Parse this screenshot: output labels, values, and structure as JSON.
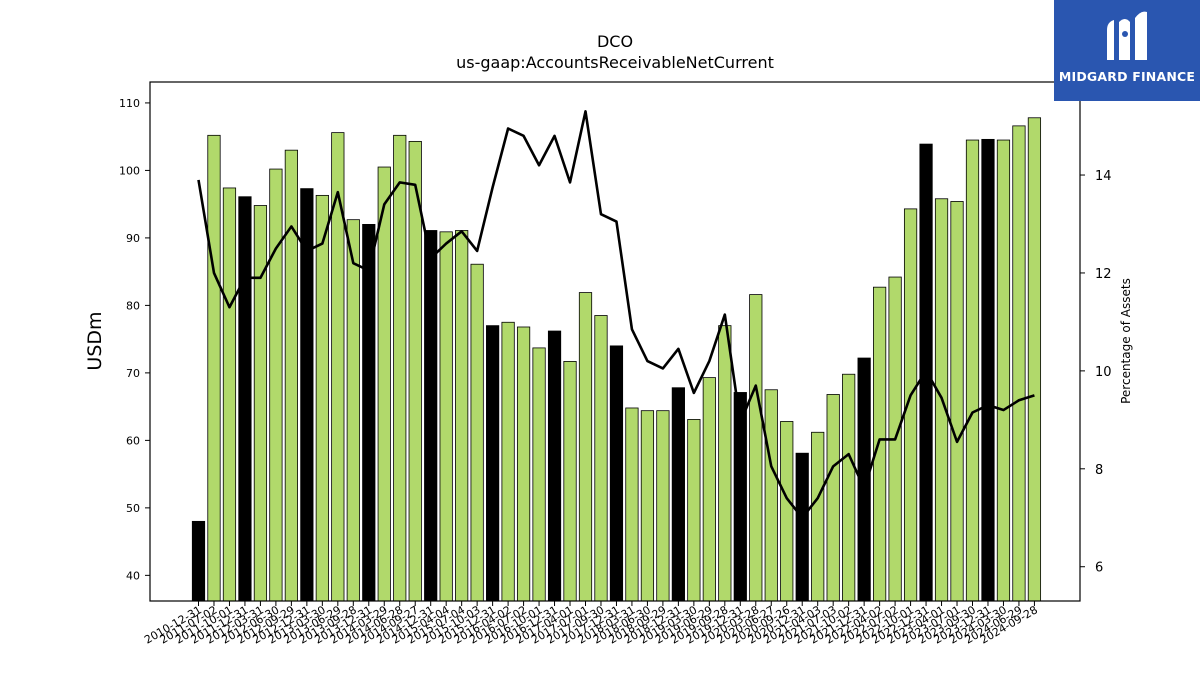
{
  "brand": {
    "name": "MIDGARD FINANCE",
    "icon": "midgard-logo-icon"
  },
  "chart_data": {
    "type": "bar",
    "title": "DCO",
    "subtitle": "us-gaap:AccountsReceivableNetCurrent",
    "ylabel": "USDm",
    "y2label": "Percentage of Assets",
    "ylim": [
      36.2,
      113.1
    ],
    "y2lim": [
      5.3,
      15.9
    ],
    "yticks": [
      40,
      50,
      60,
      70,
      80,
      90,
      100,
      110
    ],
    "y2ticks": [
      6,
      8,
      10,
      12,
      14
    ],
    "colors": {
      "annual": "#000000",
      "quarterly": "#b1d96b",
      "line": "#000000"
    },
    "categories": [
      "2010-12-31",
      "2011-07-02",
      "2011-10-01",
      "2011-12-31",
      "2012-03-31",
      "2012-06-30",
      "2012-09-29",
      "2012-12-31",
      "2013-03-30",
      "2013-06-29",
      "2013-09-28",
      "2013-12-31",
      "2014-03-29",
      "2014-06-28",
      "2014-09-27",
      "2014-12-31",
      "2015-04-04",
      "2015-07-04",
      "2015-10-03",
      "2015-12-31",
      "2016-04-02",
      "2016-07-02",
      "2016-10-01",
      "2016-12-31",
      "2017-04-01",
      "2017-07-01",
      "2017-09-30",
      "2017-12-31",
      "2018-03-31",
      "2018-06-30",
      "2018-09-29",
      "2018-12-31",
      "2019-03-30",
      "2019-06-29",
      "2019-09-28",
      "2019-12-31",
      "2020-03-28",
      "2020-06-27",
      "2020-09-26",
      "2020-12-31",
      "2021-04-03",
      "2021-07-03",
      "2021-10-02",
      "2021-12-31",
      "2022-04-02",
      "2022-07-02",
      "2022-10-01",
      "2022-12-31",
      "2023-04-01",
      "2023-07-01",
      "2023-09-30",
      "2023-12-31",
      "2024-03-30",
      "2024-06-29",
      "2024-09-28"
    ],
    "series": [
      {
        "values": [
          48.0,
          105.2,
          97.4,
          96.1,
          94.8,
          100.2,
          103.0,
          97.3,
          96.3,
          105.6,
          92.7,
          92.0,
          100.5,
          105.2,
          104.3,
          91.1,
          90.9,
          91.1,
          86.1,
          77.0,
          77.5,
          76.8,
          73.7,
          76.2,
          71.7,
          81.9,
          78.5,
          74.0,
          64.8,
          64.4,
          64.4,
          67.8,
          63.1,
          69.3,
          77.0,
          67.1,
          81.6,
          67.5,
          62.8,
          58.1,
          61.2,
          66.8,
          69.8,
          72.2,
          82.7,
          84.2,
          94.3,
          103.9,
          95.8,
          95.4,
          104.5,
          104.6,
          104.5,
          106.6,
          107.8
        ],
        "period": [
          "annual",
          "quarterly",
          "quarterly",
          "annual",
          "quarterly",
          "quarterly",
          "quarterly",
          "annual",
          "quarterly",
          "quarterly",
          "quarterly",
          "annual",
          "quarterly",
          "quarterly",
          "quarterly",
          "annual",
          "quarterly",
          "quarterly",
          "quarterly",
          "annual",
          "quarterly",
          "quarterly",
          "quarterly",
          "annual",
          "quarterly",
          "quarterly",
          "quarterly",
          "annual",
          "quarterly",
          "quarterly",
          "quarterly",
          "annual",
          "quarterly",
          "quarterly",
          "quarterly",
          "annual",
          "quarterly",
          "quarterly",
          "quarterly",
          "annual",
          "quarterly",
          "quarterly",
          "quarterly",
          "annual",
          "quarterly",
          "quarterly",
          "quarterly",
          "annual",
          "quarterly",
          "quarterly",
          "quarterly",
          "annual",
          "quarterly",
          "quarterly",
          "quarterly"
        ]
      },
      {
        "axis": "right",
        "values": [
          13.9,
          12.0,
          11.3,
          11.9,
          11.9,
          12.5,
          12.95,
          12.45,
          12.6,
          13.65,
          12.2,
          12.05,
          13.4,
          13.85,
          13.8,
          12.3,
          12.6,
          12.85,
          12.45,
          13.75,
          14.95,
          14.8,
          14.2,
          14.8,
          13.85,
          15.3,
          13.2,
          13.05,
          10.85,
          10.2,
          10.05,
          10.45,
          9.55,
          10.2,
          11.15,
          8.95,
          9.7,
          8.05,
          7.4,
          7.0,
          7.4,
          8.05,
          8.3,
          7.6,
          8.6,
          8.6,
          9.5,
          10.0,
          9.45,
          8.55,
          9.15,
          9.3,
          9.2,
          9.4,
          9.5
        ]
      }
    ]
  }
}
